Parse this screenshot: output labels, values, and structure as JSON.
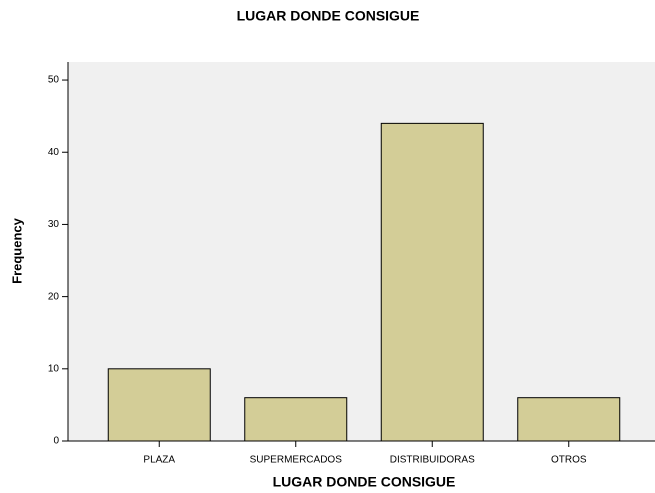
{
  "chart_data": {
    "type": "bar",
    "title": "LUGAR DONDE CONSIGUE",
    "x_label": "LUGAR DONDE CONSIGUE",
    "y_label": "Frequency",
    "categories": [
      "PLAZA",
      "SUPERMERCADOS",
      "DISTRIBUIDORAS",
      "OTROS"
    ],
    "values": [
      10,
      6,
      44,
      6
    ],
    "color": "#d3cd97",
    "ylim": [
      0,
      52.5
    ],
    "yticks": [
      0,
      10,
      20,
      30,
      40,
      50
    ],
    "grid": false
  }
}
